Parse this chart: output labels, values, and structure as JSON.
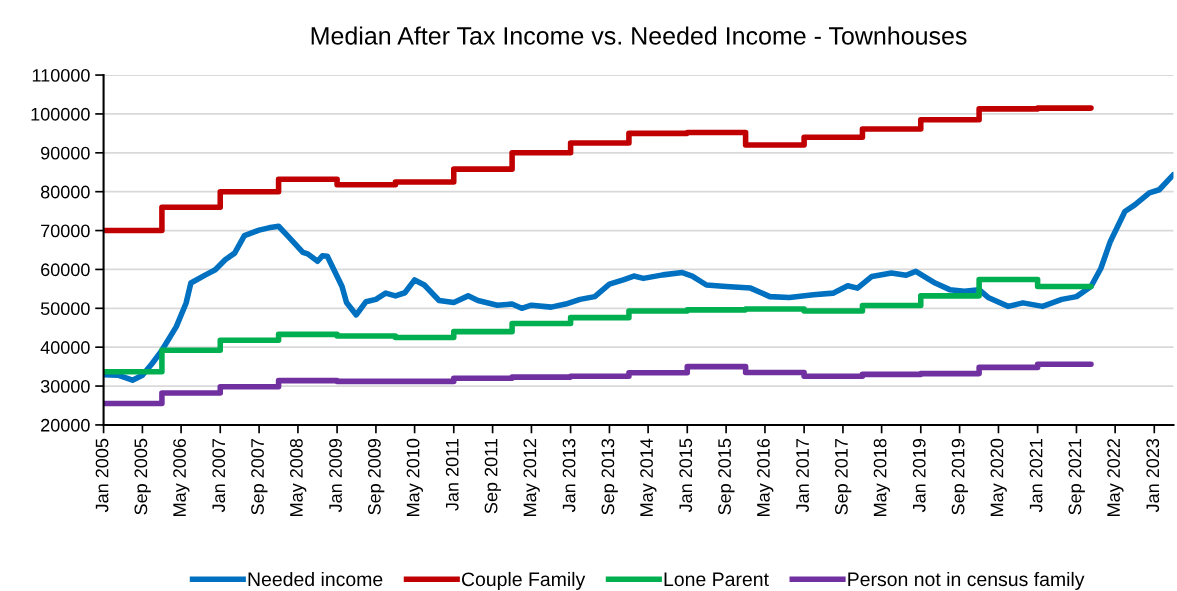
{
  "chart_data": {
    "type": "line",
    "title": "Median After Tax Income vs. Needed Income - Townhouses",
    "series": [
      {
        "name": "Needed income",
        "color": "#0070c0",
        "x": [
          "2005-01",
          "2005-04",
          "2005-07",
          "2005-09",
          "2005-11",
          "2006-01",
          "2006-04",
          "2006-06",
          "2006-07",
          "2006-10",
          "2006-12",
          "2007-02",
          "2007-04",
          "2007-06",
          "2007-09",
          "2007-11",
          "2008-01",
          "2008-03",
          "2008-06",
          "2008-07",
          "2008-09",
          "2008-10",
          "2008-11",
          "2009-02",
          "2009-03",
          "2009-05",
          "2009-07",
          "2009-09",
          "2009-11",
          "2010-01",
          "2010-03",
          "2010-05",
          "2010-07",
          "2010-10",
          "2011-01",
          "2011-04",
          "2011-06",
          "2011-10",
          "2012-01",
          "2012-03",
          "2012-05",
          "2012-09",
          "2012-12",
          "2013-03",
          "2013-06",
          "2013-09",
          "2013-12",
          "2014-02",
          "2014-04",
          "2014-08",
          "2014-12",
          "2015-02",
          "2015-05",
          "2015-09",
          "2016-02",
          "2016-06",
          "2016-10",
          "2017-03",
          "2017-07",
          "2017-10",
          "2017-12",
          "2018-03",
          "2018-07",
          "2018-10",
          "2018-12",
          "2019-04",
          "2019-07",
          "2019-10",
          "2020-01",
          "2020-03",
          "2020-07",
          "2020-10",
          "2021-02",
          "2021-06",
          "2021-09",
          "2021-12",
          "2022-02",
          "2022-04",
          "2022-07",
          "2022-09",
          "2022-12",
          "2023-02",
          "2023-05"
        ],
        "values": [
          32900,
          32800,
          31500,
          32800,
          35800,
          39200,
          45300,
          51300,
          56500,
          58600,
          59900,
          62500,
          64200,
          68700,
          70100,
          70700,
          71100,
          68500,
          64400,
          64000,
          62100,
          63500,
          63400,
          55600,
          51500,
          48300,
          51700,
          52300,
          53900,
          53200,
          54000,
          57300,
          56000,
          52000,
          51500,
          53200,
          52000,
          50800,
          51100,
          50000,
          50800,
          50300,
          51100,
          52300,
          53000,
          56200,
          57400,
          58300,
          57700,
          58600,
          59200,
          58300,
          56000,
          55600,
          55200,
          53000,
          52800,
          53500,
          53900,
          55800,
          55200,
          58200,
          59100,
          58500,
          59500,
          56500,
          54800,
          54400,
          54800,
          52700,
          50500,
          51400,
          50500,
          52300,
          53000,
          55600,
          60300,
          67200,
          74900,
          76600,
          79700,
          80500,
          84400
        ]
      },
      {
        "name": "Couple Family",
        "color": "#c00000",
        "type": "step",
        "x": [
          "2005-01",
          "2006-01",
          "2007-01",
          "2008-01",
          "2009-01",
          "2010-01",
          "2011-01",
          "2012-01",
          "2013-01",
          "2014-01",
          "2015-01",
          "2016-01",
          "2017-01",
          "2018-01",
          "2019-01",
          "2020-01",
          "2021-01",
          "2021-12"
        ],
        "values": [
          70000,
          76000,
          80000,
          83200,
          81800,
          82500,
          85800,
          90000,
          92500,
          95000,
          95200,
          92000,
          94000,
          96100,
          98500,
          101300,
          101500,
          101500
        ]
      },
      {
        "name": "Lone Parent",
        "color": "#00b050",
        "type": "step",
        "x": [
          "2005-01",
          "2006-01",
          "2007-01",
          "2008-01",
          "2009-01",
          "2010-01",
          "2011-01",
          "2012-01",
          "2013-01",
          "2014-01",
          "2015-01",
          "2016-01",
          "2017-01",
          "2018-01",
          "2019-01",
          "2020-01",
          "2021-01",
          "2021-12"
        ],
        "values": [
          33700,
          39200,
          41800,
          43300,
          42900,
          42500,
          44000,
          46100,
          47600,
          49300,
          49600,
          49800,
          49300,
          50700,
          53200,
          57400,
          55600,
          55600
        ]
      },
      {
        "name": "Person not in census family",
        "color": "#7030a0",
        "type": "step",
        "x": [
          "2005-01",
          "2006-01",
          "2007-01",
          "2008-01",
          "2009-01",
          "2010-01",
          "2011-01",
          "2012-01",
          "2013-01",
          "2014-01",
          "2015-01",
          "2016-01",
          "2017-01",
          "2018-01",
          "2019-01",
          "2020-01",
          "2021-01",
          "2021-12"
        ],
        "values": [
          25500,
          28200,
          29800,
          31400,
          31200,
          31200,
          32000,
          32300,
          32500,
          33400,
          35000,
          33500,
          32500,
          33000,
          33200,
          34800,
          35600,
          35600
        ]
      }
    ],
    "xlim": [
      "2005-01",
      "2023-05"
    ],
    "xticks": [
      {
        "value": "2005-01",
        "label": "Jan 2005"
      },
      {
        "value": "2005-09",
        "label": "Sep 2005"
      },
      {
        "value": "2006-05",
        "label": "May 2006"
      },
      {
        "value": "2007-01",
        "label": "Jan 2007"
      },
      {
        "value": "2007-09",
        "label": "Sep 2007"
      },
      {
        "value": "2008-05",
        "label": "May 2008"
      },
      {
        "value": "2009-01",
        "label": "Jan 2009"
      },
      {
        "value": "2009-09",
        "label": "Sep 2009"
      },
      {
        "value": "2010-05",
        "label": "May 2010"
      },
      {
        "value": "2011-01",
        "label": "Jan 2011"
      },
      {
        "value": "2011-09",
        "label": "Sep 2011"
      },
      {
        "value": "2012-05",
        "label": "May 2012"
      },
      {
        "value": "2013-01",
        "label": "Jan 2013"
      },
      {
        "value": "2013-09",
        "label": "Sep 2013"
      },
      {
        "value": "2014-05",
        "label": "May 2014"
      },
      {
        "value": "2015-01",
        "label": "Jan 2015"
      },
      {
        "value": "2015-09",
        "label": "Sep 2015"
      },
      {
        "value": "2016-05",
        "label": "May 2016"
      },
      {
        "value": "2017-01",
        "label": "Jan 2017"
      },
      {
        "value": "2017-09",
        "label": "Sep 2017"
      },
      {
        "value": "2018-05",
        "label": "May 2018"
      },
      {
        "value": "2019-01",
        "label": "Jan 2019"
      },
      {
        "value": "2019-09",
        "label": "Sep 2019"
      },
      {
        "value": "2020-05",
        "label": "May 2020"
      },
      {
        "value": "2021-01",
        "label": "Jan 2021"
      },
      {
        "value": "2021-09",
        "label": "Sep 2021"
      },
      {
        "value": "2022-05",
        "label": "May 2022"
      },
      {
        "value": "2023-01",
        "label": "Jan 2023"
      }
    ],
    "ylim": [
      20000,
      110000
    ],
    "yticks": [
      20000,
      30000,
      40000,
      50000,
      60000,
      70000,
      80000,
      90000,
      100000,
      110000
    ],
    "grid": "y",
    "legend": "bottom",
    "marker": "none",
    "line_style": "solid"
  }
}
